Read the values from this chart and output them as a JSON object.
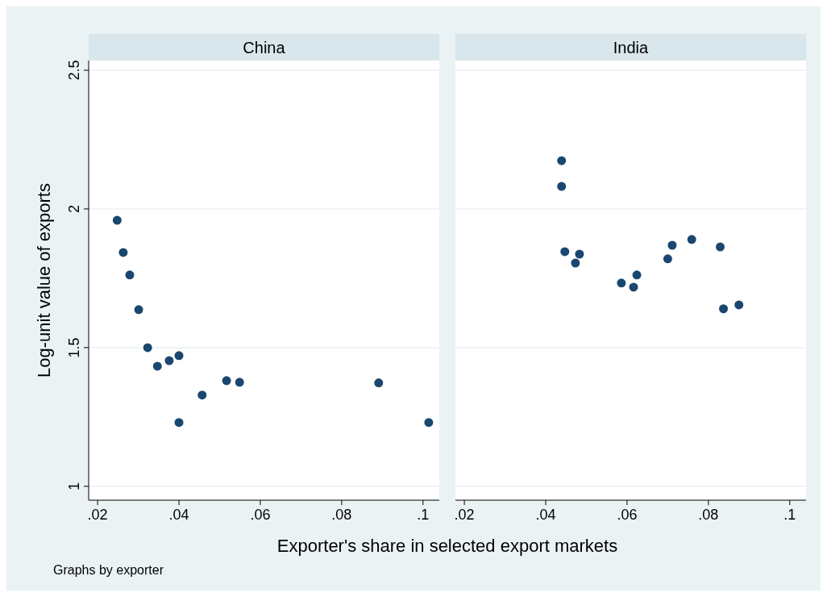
{
  "chart_data": [
    {
      "type": "scatter",
      "title": "China",
      "ylabel": "Log-unit value of exports",
      "xlabel": "Exporter's share in selected export markets",
      "annotations": [
        "Graphs by exporter"
      ],
      "grid": "y",
      "marker": "circle",
      "xlim": [
        0.0178,
        0.104
      ],
      "ylim": [
        0.95,
        2.535
      ],
      "xticks": [
        {
          "value": 0.02,
          "label": ".02"
        },
        {
          "value": 0.04,
          "label": ".04"
        },
        {
          "value": 0.06,
          "label": ".06"
        },
        {
          "value": 0.08,
          "label": ".08"
        },
        {
          "value": 0.1,
          "label": ".1"
        }
      ],
      "yticks": [
        1,
        1.5,
        2,
        2.5
      ],
      "series": [
        {
          "color": "#1a476f",
          "x": [
            0.0248,
            0.0263,
            0.0279,
            0.0301,
            0.0323,
            0.0347,
            0.0376,
            0.04,
            0.04,
            0.0457,
            0.0517,
            0.0549,
            0.0891,
            0.1014
          ],
          "values": [
            1.959,
            1.843,
            1.762,
            1.637,
            1.5,
            1.433,
            1.453,
            1.471,
            1.23,
            1.329,
            1.381,
            1.375,
            1.373,
            1.23
          ]
        }
      ]
    },
    {
      "type": "scatter",
      "title": "India",
      "grid": "y",
      "marker": "circle",
      "tick_labels": "x",
      "xlim": [
        0.0178,
        0.104
      ],
      "ylim": [
        0.95,
        2.535
      ],
      "xticks": [
        {
          "value": 0.02,
          "label": ".02"
        },
        {
          "value": 0.04,
          "label": ".04"
        },
        {
          "value": 0.06,
          "label": ".06"
        },
        {
          "value": 0.08,
          "label": ".08"
        },
        {
          "value": 0.1,
          "label": ".1"
        }
      ],
      "yticks": [
        1,
        1.5,
        2,
        2.5
      ],
      "series": [
        {
          "color": "#1a476f",
          "x": [
            0.0439,
            0.0439,
            0.0447,
            0.0473,
            0.0483,
            0.0586,
            0.0616,
            0.0624,
            0.07,
            0.0711,
            0.0759,
            0.0829,
            0.0837,
            0.0875
          ],
          "values": [
            2.174,
            2.081,
            1.846,
            1.805,
            1.837,
            1.733,
            1.718,
            1.762,
            1.82,
            1.869,
            1.89,
            1.863,
            1.64,
            1.654
          ]
        }
      ]
    }
  ]
}
